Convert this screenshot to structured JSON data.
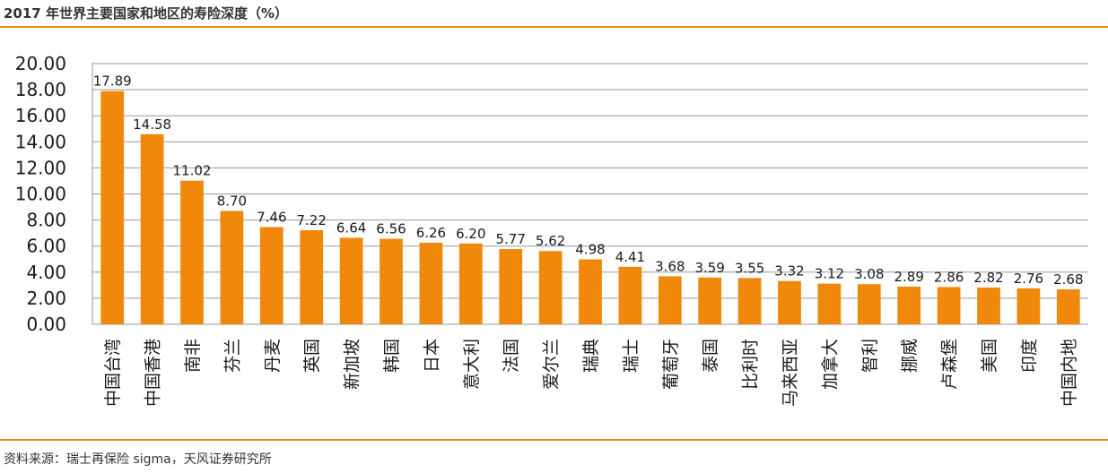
{
  "header": {
    "title": "2017 年世界主要国家和地区的寿险深度（%）"
  },
  "footer": {
    "source": "资料来源：瑞士再保险 sigma，天风证券研究所"
  },
  "colors": {
    "bar": "#f0890b",
    "accent": "#f0890b",
    "grid": "#9a9a9a",
    "text": "#1a1a1a"
  },
  "chart_data": {
    "type": "bar",
    "title": "2017 年世界主要国家和地区的寿险深度（%）",
    "xlabel": "",
    "ylabel": "",
    "ylim": [
      0,
      20
    ],
    "yticks": [
      "0.00",
      "2.00",
      "4.00",
      "6.00",
      "8.00",
      "10.00",
      "12.00",
      "14.00",
      "16.00",
      "18.00",
      "20.00"
    ],
    "grid": true,
    "legend": "none",
    "categories": [
      "中国台湾",
      "中国香港",
      "南非",
      "芬兰",
      "丹麦",
      "英国",
      "新加坡",
      "韩国",
      "日本",
      "意大利",
      "法国",
      "爱尔兰",
      "瑞典",
      "瑞士",
      "葡萄牙",
      "泰国",
      "比利时",
      "马来西亚",
      "加拿大",
      "智利",
      "挪威",
      "卢森堡",
      "美国",
      "印度",
      "中国内地"
    ],
    "values": [
      17.89,
      14.58,
      11.02,
      8.7,
      7.46,
      7.22,
      6.64,
      6.56,
      6.26,
      6.2,
      5.77,
      5.62,
      4.98,
      4.41,
      3.68,
      3.59,
      3.55,
      3.32,
      3.12,
      3.08,
      2.89,
      2.86,
      2.82,
      2.76,
      2.68
    ],
    "data_labels": [
      "17.89",
      "14.58",
      "11.02",
      "8.70",
      "7.46",
      "7.22",
      "6.64",
      "6.56",
      "6.26",
      "6.20",
      "5.77",
      "5.62",
      "4.98",
      "4.41",
      "3.68",
      "3.59",
      "3.55",
      "3.32",
      "3.12",
      "3.08",
      "2.89",
      "2.86",
      "2.82",
      "2.76",
      "2.68"
    ]
  }
}
